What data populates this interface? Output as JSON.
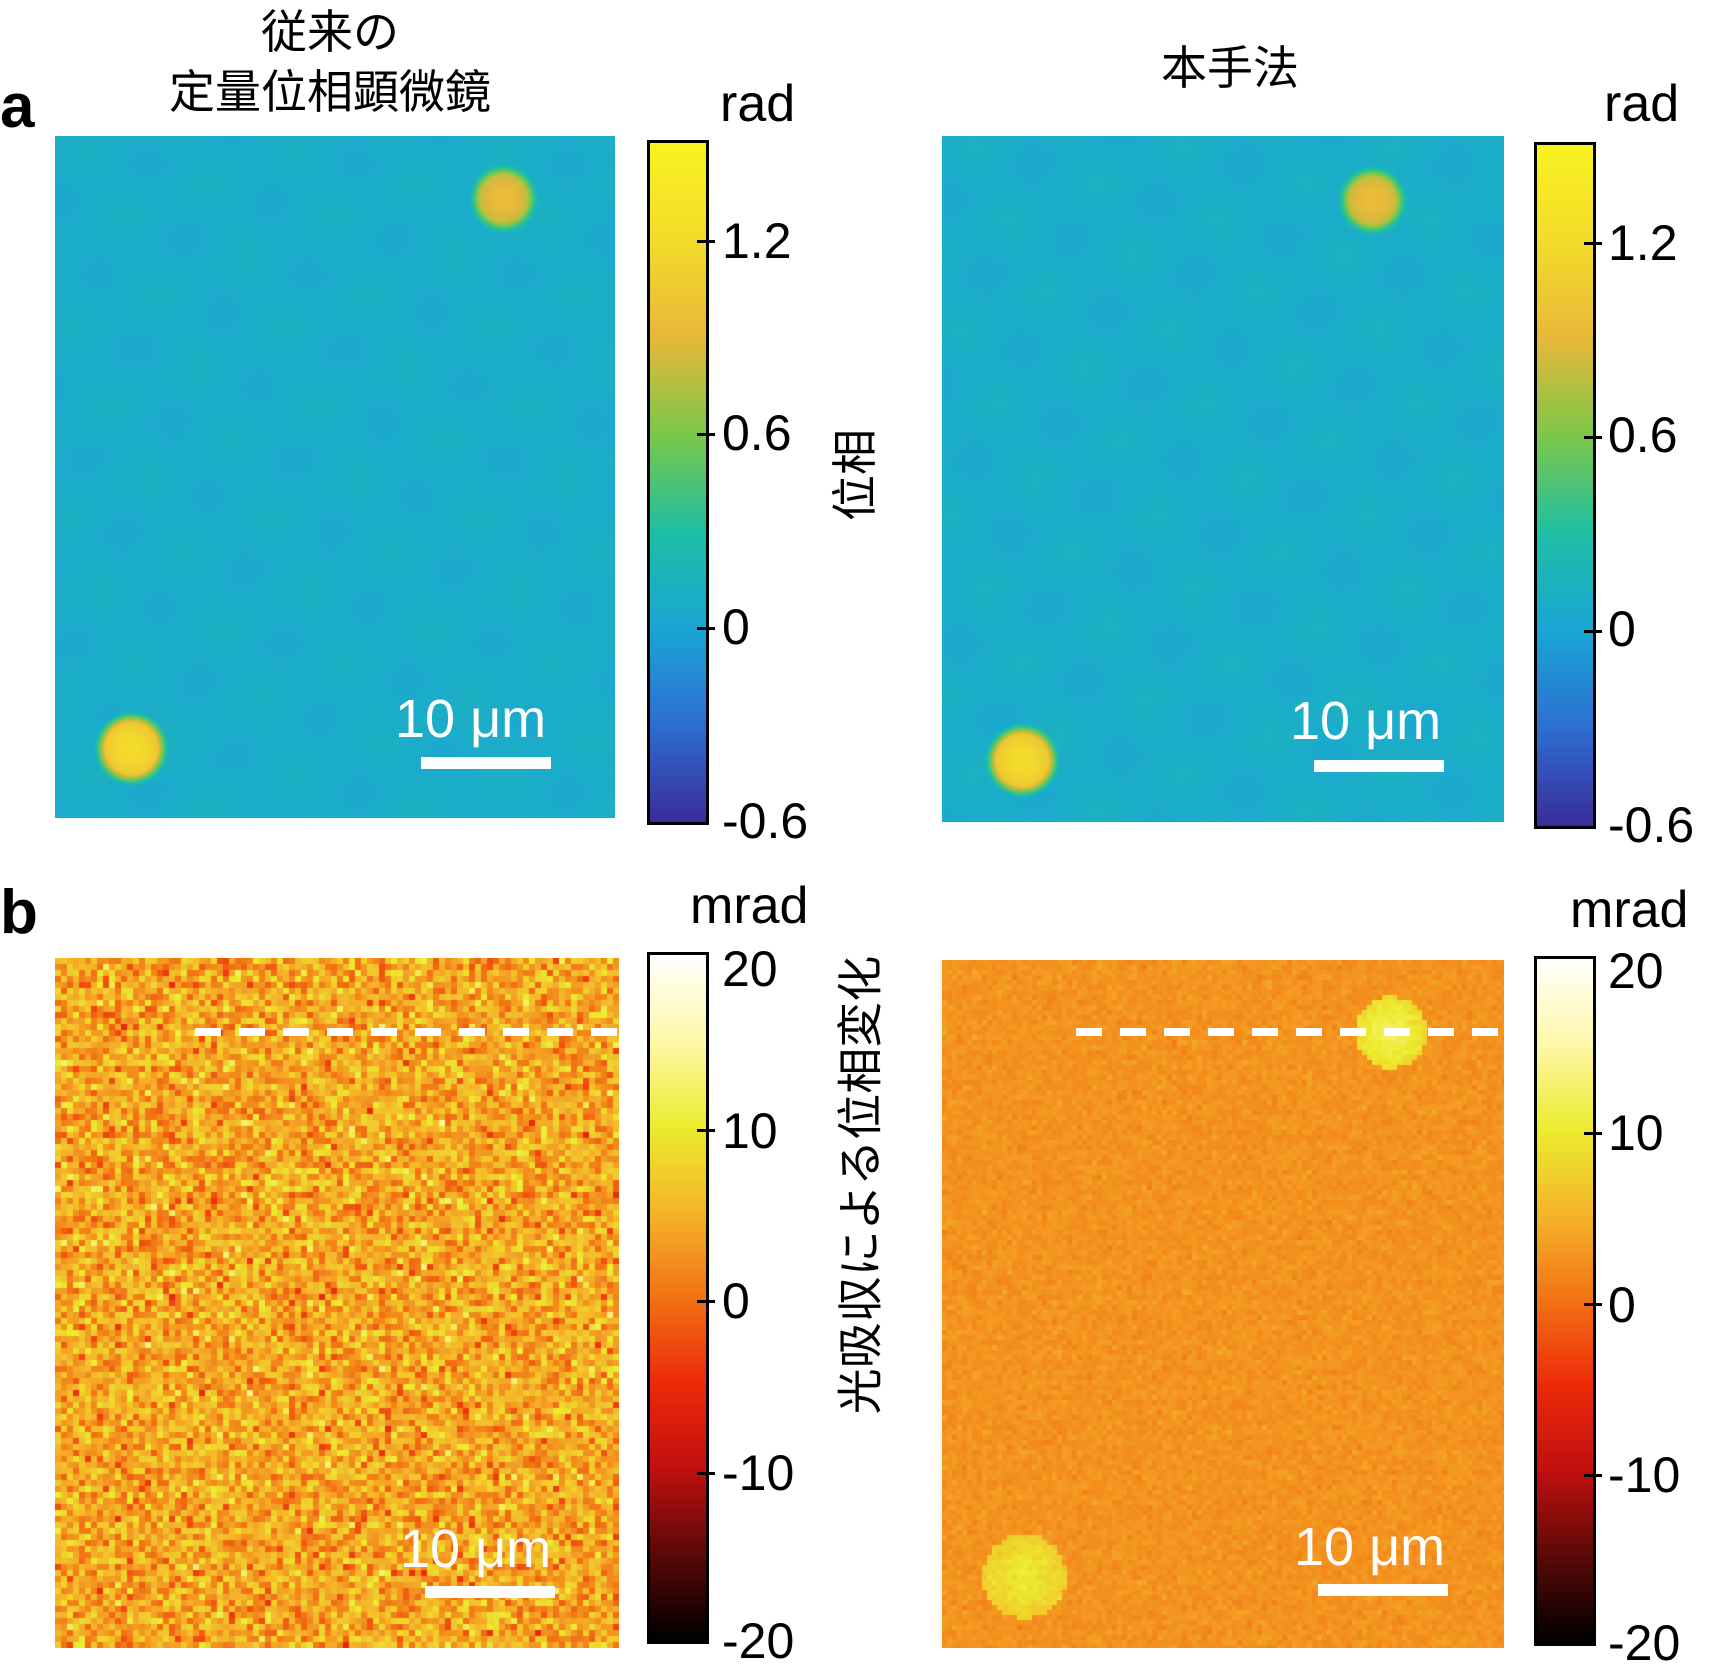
{
  "labels": {
    "panel_a": "a",
    "panel_b": "b"
  },
  "titles": {
    "left": "従来の\n定量位相顕微鏡",
    "right": "本手法"
  },
  "row_labels": {
    "a": "位相",
    "b": "光吸収による位相変化"
  },
  "scale_bar_text": "10 μm",
  "row_a": {
    "unit": "rad",
    "ticks": [
      "1.2",
      "0.6",
      "0",
      "-0.6"
    ],
    "colormap": [
      "#3a2d9b",
      "#2e6fd1",
      "#1aa6d6",
      "#1fbfa5",
      "#7cc84a",
      "#e8b83a",
      "#f4dc2b",
      "#f9f321"
    ]
  },
  "row_b": {
    "unit": "mrad",
    "ticks": [
      "20",
      "10",
      "0",
      "-10",
      "-20"
    ],
    "colormap": [
      "#000000",
      "#5a0a08",
      "#c01010",
      "#ee2a0a",
      "#f27214",
      "#f5b52a",
      "#ecec2f",
      "#fff8a8",
      "#ffffff"
    ]
  }
}
